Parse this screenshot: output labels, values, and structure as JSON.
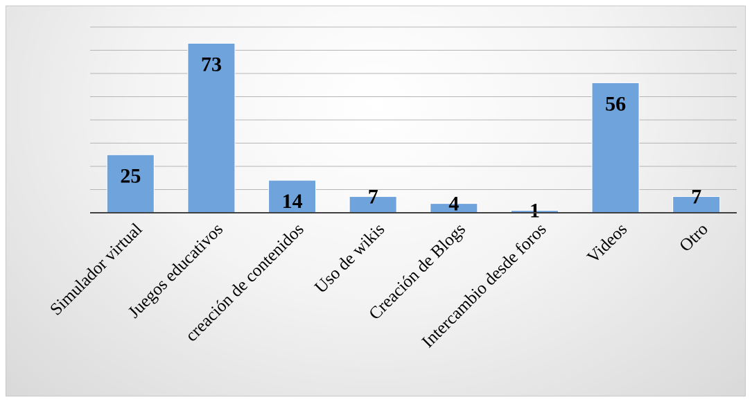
{
  "chart_data": {
    "type": "bar",
    "categories": [
      "Simulador virtual",
      "Juegos educativos",
      "creación de contenidos",
      "Uso de wikis",
      "Creación de Blogs",
      "Intercambio desde foros",
      "Videos",
      "Otro"
    ],
    "values": [
      25,
      73,
      14,
      7,
      4,
      1,
      56,
      7
    ],
    "ylim": [
      0,
      80
    ],
    "grid": true,
    "bar_color": "#6fa3dc",
    "title": "",
    "xlabel": "",
    "ylabel": ""
  }
}
